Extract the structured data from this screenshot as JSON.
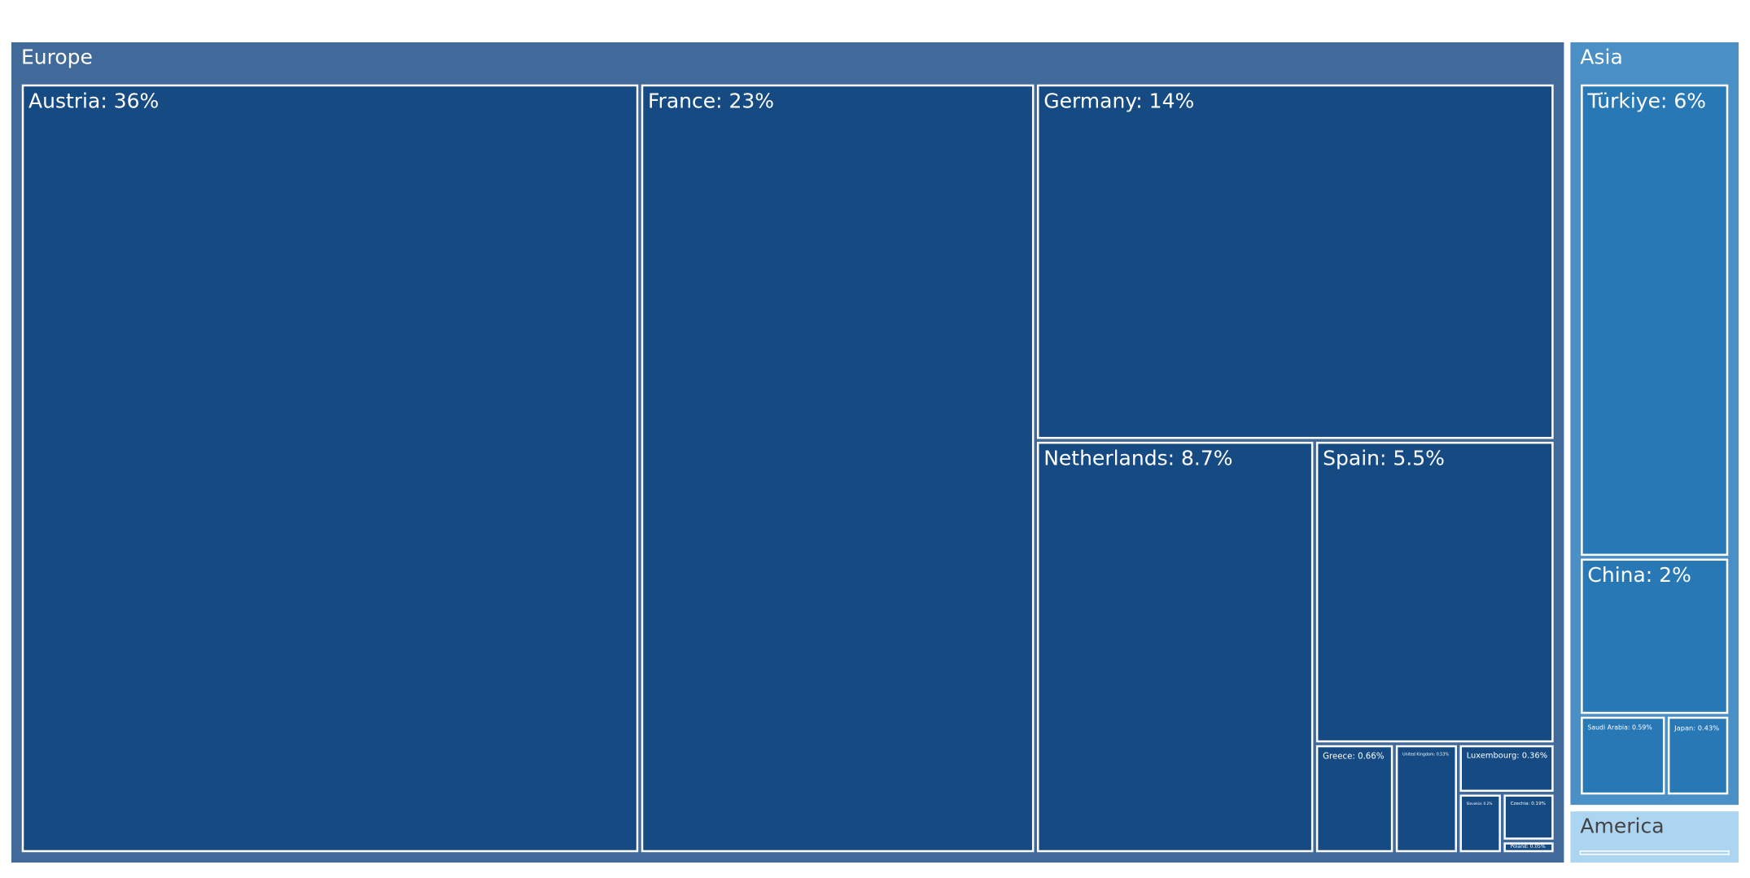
{
  "chart_data": {
    "type": "treemap",
    "groups": [
      {
        "name": "Europe",
        "color": "#41699a",
        "leaf_color": "#154a82",
        "text_color": "#ffffff",
        "children": [
          {
            "label": "Austria: 36%",
            "value": 36
          },
          {
            "label": "France: 23%",
            "value": 23
          },
          {
            "label": "Germany: 14%",
            "value": 14
          },
          {
            "label": "Netherlands: 8.7%",
            "value": 8.7
          },
          {
            "label": "Spain: 5.5%",
            "value": 5.5
          },
          {
            "label": "Greece: 0.66%",
            "value": 0.66
          },
          {
            "label": "United Kingdom: 0.53%",
            "value": 0.53
          },
          {
            "label": "Luxembourg: 0.36%",
            "value": 0.36
          },
          {
            "label": "Slovakia: 0.2%",
            "value": 0.2
          },
          {
            "label": "Czechia: 0.19%",
            "value": 0.19
          },
          {
            "label": "Poland: 0.05%",
            "value": 0.05
          }
        ]
      },
      {
        "name": "Asia",
        "color": "#4a8fc6",
        "leaf_color": "#2878b5",
        "text_color": "#ffffff",
        "children": [
          {
            "label": "Türkiye: 6%",
            "value": 6
          },
          {
            "label": "China: 2%",
            "value": 2
          },
          {
            "label": "Saudi Arabia: 0.59%",
            "value": 0.59
          },
          {
            "label": "Japan: 0.43%",
            "value": 0.43
          }
        ]
      },
      {
        "name": "America",
        "color": "#acd5f2",
        "text_color": "#444444",
        "value": 0.6
      }
    ]
  }
}
